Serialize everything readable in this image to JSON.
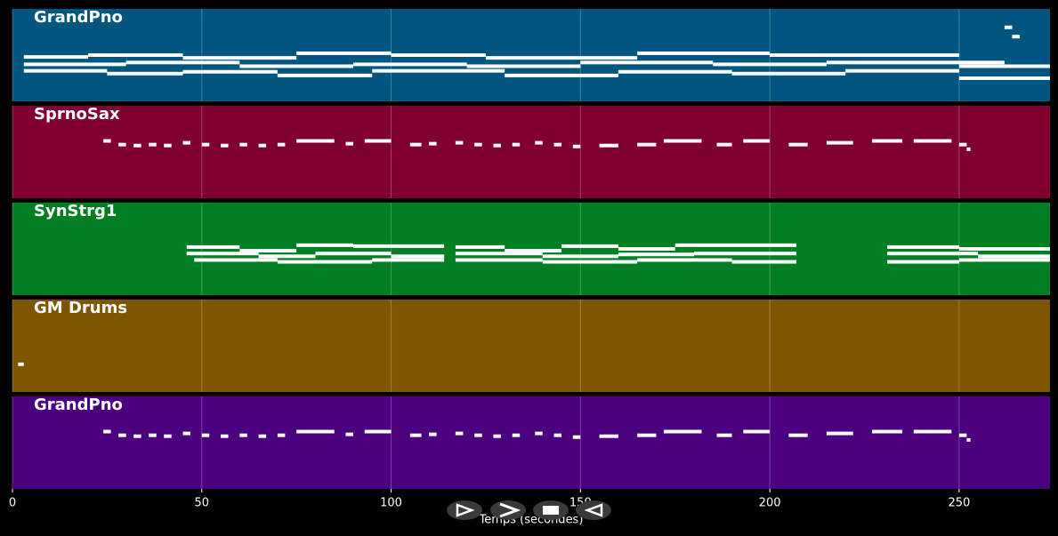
{
  "chart_data": {
    "type": "pianoroll",
    "xlabel": "Temps (secondes)",
    "xlim": [
      0,
      274
    ],
    "xticks": [
      0,
      50,
      100,
      150,
      200,
      250
    ],
    "ylim": [
      0,
      100
    ],
    "grid": true,
    "tracks": [
      {
        "name": "GrandPno",
        "color": "#00567f",
        "notes": [
          [
            3,
            20,
            48
          ],
          [
            20,
            45,
            50
          ],
          [
            45,
            75,
            47
          ],
          [
            75,
            100,
            52
          ],
          [
            100,
            125,
            50
          ],
          [
            125,
            165,
            47
          ],
          [
            165,
            200,
            52
          ],
          [
            200,
            250,
            50
          ],
          [
            250,
            262,
            42
          ],
          [
            3,
            30,
            40
          ],
          [
            30,
            60,
            42
          ],
          [
            60,
            90,
            38
          ],
          [
            90,
            120,
            40
          ],
          [
            120,
            150,
            38
          ],
          [
            150,
            185,
            42
          ],
          [
            185,
            215,
            40
          ],
          [
            215,
            250,
            42
          ],
          [
            250,
            274,
            38
          ],
          [
            3,
            25,
            33
          ],
          [
            25,
            45,
            30
          ],
          [
            45,
            70,
            32
          ],
          [
            70,
            95,
            28
          ],
          [
            95,
            130,
            33
          ],
          [
            130,
            160,
            28
          ],
          [
            160,
            190,
            32
          ],
          [
            190,
            220,
            30
          ],
          [
            220,
            250,
            33
          ],
          [
            250,
            274,
            25
          ],
          [
            262,
            264,
            80
          ],
          [
            264,
            266,
            70
          ]
        ]
      },
      {
        "name": "SprnoSax",
        "color": "#800030",
        "notes": [
          [
            24,
            26,
            62
          ],
          [
            28,
            30,
            58
          ],
          [
            32,
            34,
            57
          ],
          [
            36,
            38,
            58
          ],
          [
            40,
            42,
            57
          ],
          [
            45,
            47,
            60
          ],
          [
            50,
            52,
            58
          ],
          [
            55,
            57,
            57
          ],
          [
            60,
            62,
            58
          ],
          [
            65,
            67,
            57
          ],
          [
            70,
            72,
            58
          ],
          [
            75,
            85,
            62
          ],
          [
            88,
            90,
            59
          ],
          [
            93,
            100,
            62
          ],
          [
            105,
            108,
            58
          ],
          [
            110,
            112,
            59
          ],
          [
            117,
            119,
            60
          ],
          [
            122,
            124,
            58
          ],
          [
            127,
            129,
            57
          ],
          [
            132,
            134,
            58
          ],
          [
            138,
            140,
            60
          ],
          [
            143,
            145,
            58
          ],
          [
            148,
            150,
            56
          ],
          [
            155,
            160,
            57
          ],
          [
            165,
            170,
            58
          ],
          [
            172,
            182,
            62
          ],
          [
            186,
            190,
            58
          ],
          [
            193,
            200,
            62
          ],
          [
            205,
            210,
            58
          ],
          [
            215,
            222,
            60
          ],
          [
            227,
            235,
            62
          ],
          [
            238,
            248,
            62
          ],
          [
            250,
            252,
            58
          ],
          [
            252,
            253,
            53
          ]
        ]
      },
      {
        "name": "SynStrg1",
        "color": "#007f22",
        "notes": [
          [
            46,
            60,
            52
          ],
          [
            60,
            75,
            48
          ],
          [
            75,
            90,
            54
          ],
          [
            90,
            114,
            53
          ],
          [
            117,
            130,
            52
          ],
          [
            130,
            145,
            48
          ],
          [
            145,
            160,
            53
          ],
          [
            160,
            175,
            50
          ],
          [
            175,
            207,
            54
          ],
          [
            231,
            250,
            52
          ],
          [
            250,
            274,
            50
          ],
          [
            46,
            65,
            45
          ],
          [
            65,
            80,
            42
          ],
          [
            80,
            100,
            45
          ],
          [
            100,
            114,
            42
          ],
          [
            117,
            140,
            45
          ],
          [
            140,
            160,
            42
          ],
          [
            160,
            180,
            44
          ],
          [
            180,
            207,
            45
          ],
          [
            231,
            255,
            45
          ],
          [
            255,
            274,
            42
          ],
          [
            48,
            70,
            38
          ],
          [
            70,
            95,
            36
          ],
          [
            95,
            114,
            38
          ],
          [
            117,
            140,
            38
          ],
          [
            140,
            165,
            36
          ],
          [
            165,
            190,
            38
          ],
          [
            190,
            207,
            36
          ],
          [
            231,
            250,
            36
          ],
          [
            250,
            274,
            38
          ]
        ]
      },
      {
        "name": "GM Drums",
        "color": "#7f5500",
        "notes": [
          [
            1.5,
            3,
            30
          ]
        ]
      },
      {
        "name": "GrandPno",
        "color": "#4b007f",
        "notes": [
          [
            24,
            26,
            62
          ],
          [
            28,
            30,
            58
          ],
          [
            32,
            34,
            57
          ],
          [
            36,
            38,
            58
          ],
          [
            40,
            42,
            57
          ],
          [
            45,
            47,
            60
          ],
          [
            50,
            52,
            58
          ],
          [
            55,
            57,
            57
          ],
          [
            60,
            62,
            58
          ],
          [
            65,
            67,
            57
          ],
          [
            70,
            72,
            58
          ],
          [
            75,
            85,
            62
          ],
          [
            88,
            90,
            59
          ],
          [
            93,
            100,
            62
          ],
          [
            105,
            108,
            58
          ],
          [
            110,
            112,
            59
          ],
          [
            117,
            119,
            60
          ],
          [
            122,
            124,
            58
          ],
          [
            127,
            129,
            57
          ],
          [
            132,
            134,
            58
          ],
          [
            138,
            140,
            60
          ],
          [
            143,
            145,
            58
          ],
          [
            148,
            150,
            56
          ],
          [
            155,
            160,
            57
          ],
          [
            165,
            170,
            58
          ],
          [
            172,
            182,
            62
          ],
          [
            186,
            190,
            58
          ],
          [
            193,
            200,
            62
          ],
          [
            205,
            210,
            58
          ],
          [
            215,
            222,
            60
          ],
          [
            227,
            235,
            62
          ],
          [
            238,
            248,
            62
          ],
          [
            250,
            252,
            58
          ],
          [
            252,
            253,
            53
          ]
        ]
      }
    ]
  }
}
